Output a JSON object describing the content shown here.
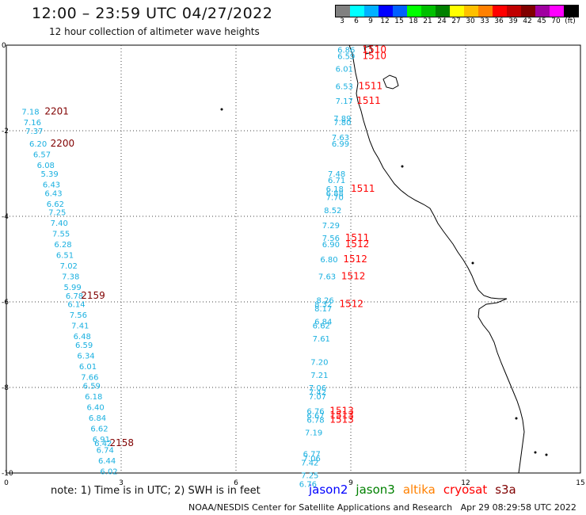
{
  "header": {
    "title": "12:00 – 23:59 UTC 04/27/2022",
    "subtitle": "12 hour collection of altimeter wave heights"
  },
  "colorbar": {
    "colors": [
      "#808080",
      "#00ffff",
      "#00b0ff",
      "#0000ff",
      "#0060ff",
      "#00ff00",
      "#00c000",
      "#008000",
      "#ffff00",
      "#ffc000",
      "#ff8000",
      "#ff0000",
      "#c00000",
      "#800000",
      "#a000a0",
      "#ff00ff",
      "#000000"
    ],
    "labels": [
      "3",
      "6",
      "9",
      "12",
      "15",
      "18",
      "21",
      "24",
      "27",
      "30",
      "33",
      "36",
      "39",
      "42",
      "45",
      "70",
      "(ft)"
    ]
  },
  "chart_data": {
    "type": "scatter",
    "xlim": [
      0,
      15
    ],
    "ylim": [
      -10,
      0
    ],
    "x_ticks": [
      "0",
      "3",
      "6",
      "9",
      "12",
      "15"
    ],
    "y_ticks": [
      "0",
      "-2",
      "-4",
      "-6",
      "-8",
      "-10"
    ],
    "grid": true,
    "series_colors": {
      "jason2": "#0000ff",
      "jason3": "#008000",
      "altika": "#ff8000",
      "cryosat": "#ff0000",
      "s3a": "#800000"
    },
    "track_west": {
      "label_color": "#1ab0e0",
      "points": [
        {
          "x": 0.4,
          "y": -1.55,
          "v": "7.18"
        },
        {
          "x": 0.45,
          "y": -1.8,
          "v": "7.16"
        },
        {
          "x": 0.5,
          "y": -2.0,
          "v": "7.37"
        },
        {
          "x": 0.6,
          "y": -2.3,
          "v": "6.20"
        },
        {
          "x": 0.7,
          "y": -2.55,
          "v": "6.57"
        },
        {
          "x": 0.8,
          "y": -2.8,
          "v": "6.08"
        },
        {
          "x": 0.9,
          "y": -3.0,
          "v": "5.39"
        },
        {
          "x": 0.95,
          "y": -3.25,
          "v": "6.43"
        },
        {
          "x": 1.0,
          "y": -3.45,
          "v": "6.43"
        },
        {
          "x": 1.05,
          "y": -3.7,
          "v": "6.62"
        },
        {
          "x": 1.1,
          "y": -3.9,
          "v": "7.25"
        },
        {
          "x": 1.15,
          "y": -4.15,
          "v": "7.40"
        },
        {
          "x": 1.2,
          "y": -4.4,
          "v": "7.55"
        },
        {
          "x": 1.25,
          "y": -4.65,
          "v": "6.28"
        },
        {
          "x": 1.3,
          "y": -4.9,
          "v": "6.51"
        },
        {
          "x": 1.4,
          "y": -5.15,
          "v": "7.02"
        },
        {
          "x": 1.45,
          "y": -5.4,
          "v": "7.38"
        },
        {
          "x": 1.5,
          "y": -5.65,
          "v": "5.99"
        },
        {
          "x": 1.55,
          "y": -5.85,
          "v": "6.78"
        },
        {
          "x": 1.6,
          "y": -6.05,
          "v": "6.14"
        },
        {
          "x": 1.65,
          "y": -6.3,
          "v": "7.56"
        },
        {
          "x": 1.7,
          "y": -6.55,
          "v": "7.41"
        },
        {
          "x": 1.75,
          "y": -6.8,
          "v": "6.48"
        },
        {
          "x": 1.8,
          "y": -7.0,
          "v": "6.59"
        },
        {
          "x": 1.85,
          "y": -7.25,
          "v": "6.34"
        },
        {
          "x": 1.9,
          "y": -7.5,
          "v": "6.01"
        },
        {
          "x": 1.95,
          "y": -7.75,
          "v": "7.66"
        },
        {
          "x": 2.0,
          "y": -7.95,
          "v": "6.59"
        },
        {
          "x": 2.05,
          "y": -8.2,
          "v": "6.18"
        },
        {
          "x": 2.1,
          "y": -8.45,
          "v": "6.40"
        },
        {
          "x": 2.15,
          "y": -8.7,
          "v": "6.84"
        },
        {
          "x": 2.2,
          "y": -8.95,
          "v": "6.62"
        },
        {
          "x": 2.25,
          "y": -9.2,
          "v": "6.91"
        },
        {
          "x": 2.3,
          "y": -9.3,
          "v": "6.42"
        },
        {
          "x": 2.35,
          "y": -9.45,
          "v": "6.74"
        },
        {
          "x": 2.4,
          "y": -9.7,
          "v": "6.44"
        },
        {
          "x": 2.45,
          "y": -9.95,
          "v": "6.02"
        }
      ],
      "time_labels": [
        {
          "x": 1.0,
          "y": -1.55,
          "v": "2201"
        },
        {
          "x": 1.15,
          "y": -2.3,
          "v": "2200"
        },
        {
          "x": 1.95,
          "y": -5.85,
          "v": "2159"
        },
        {
          "x": 2.7,
          "y": -9.3,
          "v": "2158"
        }
      ]
    },
    "track_east": {
      "label_color": "#1ab0e0",
      "points": [
        {
          "x": 8.65,
          "y": -0.1,
          "v": "6.86"
        },
        {
          "x": 8.65,
          "y": -0.25,
          "v": "6.59"
        },
        {
          "x": 8.6,
          "y": -0.55,
          "v": "6.01"
        },
        {
          "x": 8.6,
          "y": -0.95,
          "v": "6.53"
        },
        {
          "x": 8.6,
          "y": -1.3,
          "v": "7.17"
        },
        {
          "x": 8.55,
          "y": -1.7,
          "v": "7.89"
        },
        {
          "x": 8.55,
          "y": -1.8,
          "v": "7.80"
        },
        {
          "x": 8.5,
          "y": -2.15,
          "v": "7.63"
        },
        {
          "x": 8.5,
          "y": -2.3,
          "v": "6.99"
        },
        {
          "x": 8.4,
          "y": -3.0,
          "v": "7.48"
        },
        {
          "x": 8.4,
          "y": -3.15,
          "v": "6.71"
        },
        {
          "x": 8.35,
          "y": -3.35,
          "v": "6.18"
        },
        {
          "x": 8.35,
          "y": -3.45,
          "v": "6.88"
        },
        {
          "x": 8.35,
          "y": -3.55,
          "v": "7.70"
        },
        {
          "x": 8.3,
          "y": -3.85,
          "v": "8.52"
        },
        {
          "x": 8.25,
          "y": -4.2,
          "v": "7.29"
        },
        {
          "x": 8.25,
          "y": -4.5,
          "v": "7.56"
        },
        {
          "x": 8.25,
          "y": -4.65,
          "v": "6.90"
        },
        {
          "x": 8.2,
          "y": -5.0,
          "v": "6.80"
        },
        {
          "x": 8.15,
          "y": -5.4,
          "v": "7.63"
        },
        {
          "x": 8.1,
          "y": -5.95,
          "v": "8.26"
        },
        {
          "x": 8.05,
          "y": -6.05,
          "v": "8.32"
        },
        {
          "x": 8.05,
          "y": -6.15,
          "v": "8.17"
        },
        {
          "x": 8.05,
          "y": -6.45,
          "v": "6.84"
        },
        {
          "x": 8.0,
          "y": -6.55,
          "v": "6.62"
        },
        {
          "x": 8.0,
          "y": -6.85,
          "v": "7.61"
        },
        {
          "x": 7.95,
          "y": -7.4,
          "v": "7.20"
        },
        {
          "x": 7.95,
          "y": -7.7,
          "v": "7.21"
        },
        {
          "x": 7.9,
          "y": -8.0,
          "v": "7.06"
        },
        {
          "x": 7.9,
          "y": -8.1,
          "v": "7.42"
        },
        {
          "x": 7.9,
          "y": -8.2,
          "v": "7.07"
        },
        {
          "x": 7.85,
          "y": -8.55,
          "v": "6.76"
        },
        {
          "x": 7.85,
          "y": -8.65,
          "v": "6.67"
        },
        {
          "x": 7.85,
          "y": -8.75,
          "v": "6.78"
        },
        {
          "x": 7.8,
          "y": -9.05,
          "v": "7.19"
        },
        {
          "x": 7.75,
          "y": -9.55,
          "v": "6.77"
        },
        {
          "x": 7.75,
          "y": -9.65,
          "v": "7.06"
        },
        {
          "x": 7.7,
          "y": -9.75,
          "v": "7.42"
        },
        {
          "x": 7.7,
          "y": -10.05,
          "v": "7.25"
        },
        {
          "x": 7.65,
          "y": -10.25,
          "v": "6.76"
        }
      ],
      "time_labels": [
        {
          "x": 9.3,
          "y": -0.1,
          "v": "1510"
        },
        {
          "x": 9.3,
          "y": -0.25,
          "v": "1510"
        },
        {
          "x": 9.2,
          "y": -0.95,
          "v": "1511"
        },
        {
          "x": 9.15,
          "y": -1.3,
          "v": "1511"
        },
        {
          "x": 9.0,
          "y": -3.35,
          "v": "1511"
        },
        {
          "x": 8.85,
          "y": -4.5,
          "v": "1511"
        },
        {
          "x": 8.85,
          "y": -4.65,
          "v": "1512"
        },
        {
          "x": 8.8,
          "y": -5.0,
          "v": "1512"
        },
        {
          "x": 8.75,
          "y": -5.4,
          "v": "1512"
        },
        {
          "x": 8.7,
          "y": -6.05,
          "v": "1512"
        },
        {
          "x": 8.45,
          "y": -8.55,
          "v": "1513"
        },
        {
          "x": 8.45,
          "y": -8.65,
          "v": "1513"
        },
        {
          "x": 8.45,
          "y": -8.75,
          "v": "1513"
        }
      ]
    }
  },
  "footer": {
    "note": "note:  1) Time is in UTC;  2) SWH is in feet",
    "satellites": [
      {
        "name": "jason2",
        "color": "#0000ff"
      },
      {
        "name": "jason3",
        "color": "#008000"
      },
      {
        "name": "altika",
        "color": "#ff8000"
      },
      {
        "name": "cryosat",
        "color": "#ff0000"
      },
      {
        "name": "s3a",
        "color": "#800000"
      }
    ],
    "credit": "NOAA/NESDIS Center for Satellite Applications and Research   Apr 29 08:29:58 UTC 2022"
  }
}
